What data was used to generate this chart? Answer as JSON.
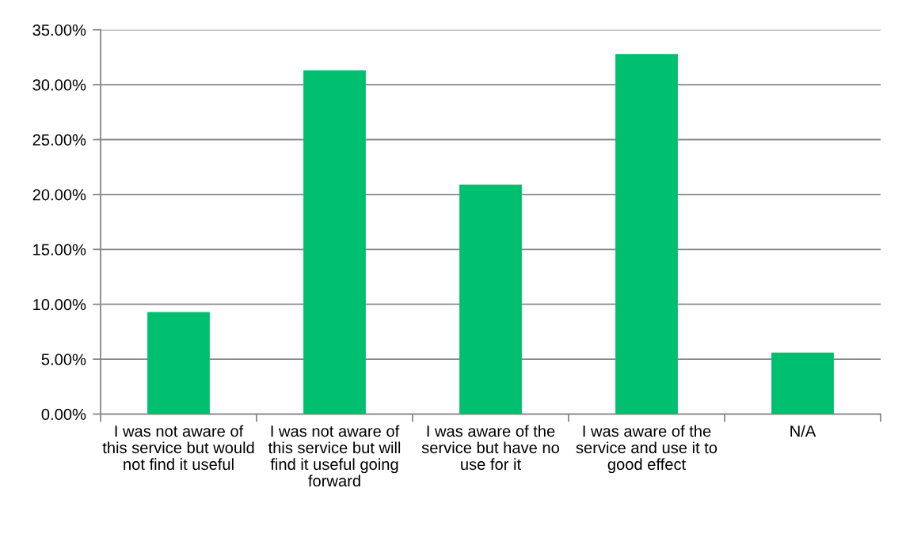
{
  "chart_data": {
    "type": "bar",
    "categories": [
      "I was not aware of this service but would not find it useful",
      "I was not aware of this service but will find it useful going forward",
      "I was aware of the service but have no use for it",
      "I was aware of the service and use it to good effect",
      "N/A"
    ],
    "values": [
      9.3,
      31.3,
      20.9,
      32.8,
      5.6
    ],
    "color": "#00bf6f",
    "ylim": [
      0,
      35
    ],
    "yticks": [
      {
        "value": 0,
        "label": "0.00%"
      },
      {
        "value": 5,
        "label": "5.00%"
      },
      {
        "value": 10,
        "label": "10.00%"
      },
      {
        "value": 15,
        "label": "15.00%"
      },
      {
        "value": 20,
        "label": "20.00%"
      },
      {
        "value": 25,
        "label": "25.00%"
      },
      {
        "value": 30,
        "label": "30.00%"
      },
      {
        "value": 35,
        "label": "35.00%"
      }
    ],
    "grid": "y"
  }
}
